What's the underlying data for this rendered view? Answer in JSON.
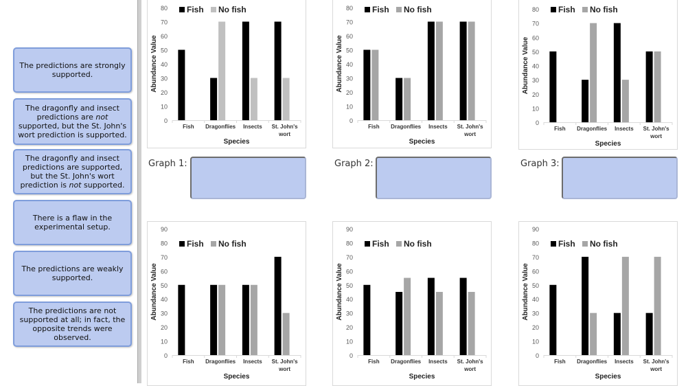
{
  "options": [
    {
      "parts": [
        "The predictions are strongly supported."
      ]
    },
    {
      "parts": [
        "The dragonfly and insect predictions are ",
        "not",
        " supported, but the St. John's wort prediction is supported."
      ]
    },
    {
      "parts": [
        "The dragonfly and insect predictions are supported, but the St. John's wort prediction is ",
        "not",
        " supported."
      ]
    },
    {
      "parts": [
        "There is a flaw in the experimental setup."
      ]
    },
    {
      "parts": [
        "The predictions are weakly supported."
      ]
    },
    {
      "parts": [
        "The predictions are not supported at all; in fact, the opposite trends were observed."
      ]
    }
  ],
  "answer_slots": [
    {
      "label": "Graph 1:",
      "value": ""
    },
    {
      "label": "Graph 2:",
      "value": ""
    },
    {
      "label": "Graph 3:",
      "value": ""
    }
  ],
  "colors": {
    "fish": "#000000",
    "card_bg": "#bccbf0",
    "card_border": "#7f9ddb"
  },
  "chart_data": [
    {
      "type": "bar",
      "categories": [
        "Fish",
        "Dragonflies",
        "Insects",
        "St. John's wort"
      ],
      "series": [
        {
          "name": "Fish",
          "values": [
            50,
            30,
            70,
            70
          ],
          "color": "#000000"
        },
        {
          "name": "No fish",
          "values": [
            0,
            70,
            30,
            30
          ],
          "color": "#c0c0c0"
        }
      ],
      "xlabel": "Species",
      "ylabel": "Abundance Value",
      "ylim": [
        0,
        80
      ],
      "yticks": [
        0,
        10,
        20,
        30,
        40,
        50,
        60,
        70,
        80
      ],
      "legend": "top"
    },
    {
      "type": "bar",
      "categories": [
        "Fish",
        "Dragonflies",
        "Insects",
        "St. John's wort"
      ],
      "series": [
        {
          "name": "Fish",
          "values": [
            50,
            30,
            70,
            70
          ],
          "color": "#000000"
        },
        {
          "name": "No fish",
          "values": [
            50,
            30,
            70,
            70
          ],
          "color": "#a6a6a6"
        }
      ],
      "xlabel": "Species",
      "ylabel": "Abundance Value",
      "ylim": [
        0,
        80
      ],
      "yticks": [
        0,
        10,
        20,
        30,
        40,
        50,
        60,
        70,
        80
      ],
      "legend": "top"
    },
    {
      "type": "bar",
      "categories": [
        "Fish",
        "Dragonflies",
        "Insects",
        "St. John's wort"
      ],
      "series": [
        {
          "name": "Fish",
          "values": [
            50,
            30,
            70,
            50
          ],
          "color": "#000000"
        },
        {
          "name": "No fish",
          "values": [
            0,
            70,
            30,
            50
          ],
          "color": "#a6a6a6"
        }
      ],
      "xlabel": "Species",
      "ylabel": "Abundance Value",
      "ylim": [
        0,
        80
      ],
      "yticks": [
        0,
        10,
        20,
        30,
        40,
        50,
        60,
        70,
        80
      ],
      "legend": "top"
    },
    {
      "type": "bar",
      "categories": [
        "Fish",
        "Dragonflies",
        "Insects",
        "St. John's wort"
      ],
      "series": [
        {
          "name": "Fish",
          "values": [
            50,
            50,
            50,
            70
          ],
          "color": "#000000"
        },
        {
          "name": "No fish",
          "values": [
            0,
            50,
            50,
            30
          ],
          "color": "#a6a6a6"
        }
      ],
      "xlabel": "Species",
      "ylabel": "Abundance Value",
      "ylim": [
        0,
        90
      ],
      "yticks": [
        0,
        10,
        20,
        30,
        40,
        50,
        60,
        70,
        80,
        90
      ],
      "legend": "top"
    },
    {
      "type": "bar",
      "categories": [
        "Fish",
        "Dragonflies",
        "Insects",
        "St. John's wort"
      ],
      "series": [
        {
          "name": "Fish",
          "values": [
            50,
            45,
            55,
            55
          ],
          "color": "#000000"
        },
        {
          "name": "No fish",
          "values": [
            0,
            55,
            45,
            45
          ],
          "color": "#a6a6a6"
        }
      ],
      "xlabel": "Species",
      "ylabel": "Abundance Value",
      "ylim": [
        0,
        90
      ],
      "yticks": [
        0,
        10,
        20,
        30,
        40,
        50,
        60,
        70,
        80,
        90
      ],
      "legend": "top"
    },
    {
      "type": "bar",
      "categories": [
        "Fish",
        "Dragonflies",
        "Insects",
        "St. John's wort"
      ],
      "series": [
        {
          "name": "Fish",
          "values": [
            50,
            70,
            30,
            30
          ],
          "color": "#000000"
        },
        {
          "name": "No fish",
          "values": [
            0,
            30,
            70,
            70
          ],
          "color": "#a6a6a6"
        }
      ],
      "xlabel": "Species",
      "ylabel": "Abundance Value",
      "ylim": [
        0,
        90
      ],
      "yticks": [
        0,
        10,
        20,
        30,
        40,
        50,
        60,
        70,
        80,
        90
      ],
      "legend": "top"
    }
  ]
}
